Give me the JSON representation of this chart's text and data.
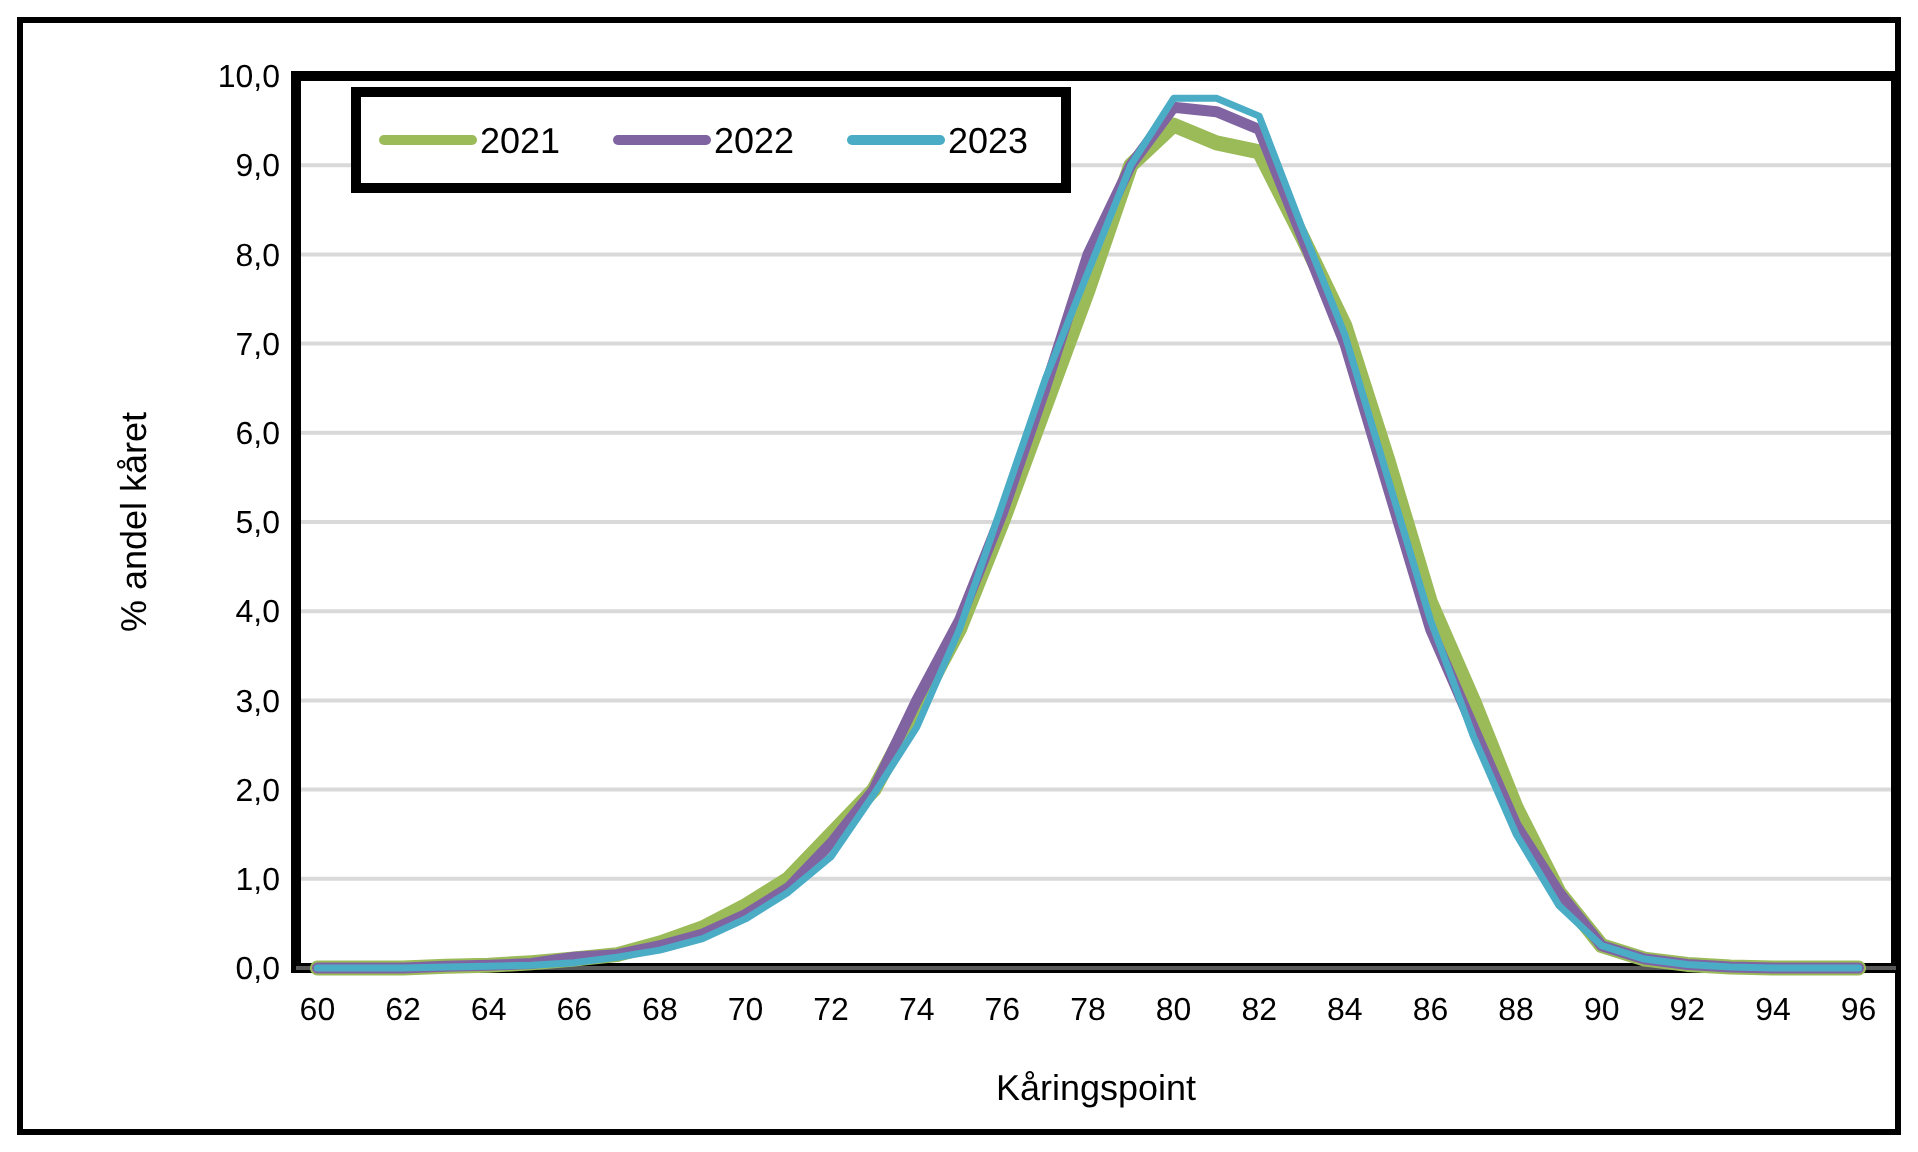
{
  "chart_data": {
    "type": "line",
    "xlabel": "Kåringspoint",
    "ylabel": "% andel kåret",
    "categories": [
      "60",
      null,
      "62",
      null,
      "64",
      null,
      "66",
      null,
      "68",
      null,
      "70",
      null,
      "72",
      null,
      "74",
      null,
      "76",
      null,
      "78",
      null,
      "80",
      null,
      "82",
      null,
      "84",
      null,
      "86",
      null,
      "88",
      null,
      "90",
      null,
      "92",
      null,
      "94",
      null,
      "96"
    ],
    "series": [
      {
        "name": "2021",
        "color": "#9bbb59",
        "values": [
          0,
          0,
          0,
          0.02,
          0.03,
          0.06,
          0.1,
          0.15,
          0.28,
          0.45,
          0.7,
          1.0,
          1.5,
          2.0,
          2.9,
          3.8,
          5.0,
          6.3,
          7.6,
          9.0,
          9.45,
          9.25,
          9.15,
          8.2,
          7.2,
          5.7,
          4.1,
          3.0,
          1.8,
          0.85,
          0.25,
          0.1,
          0.04,
          0.01,
          0,
          0,
          0
        ]
      },
      {
        "name": "2022",
        "color": "#8064a2",
        "values": [
          0,
          0,
          0,
          0.02,
          0.03,
          0.05,
          0.12,
          0.15,
          0.25,
          0.38,
          0.6,
          0.9,
          1.4,
          2.0,
          3.0,
          3.9,
          5.1,
          6.5,
          8.0,
          9.0,
          9.65,
          9.6,
          9.4,
          8.2,
          7.0,
          5.4,
          3.8,
          2.7,
          1.6,
          0.85,
          0.25,
          0.1,
          0.04,
          0.01,
          0,
          0,
          0
        ]
      },
      {
        "name": "2023",
        "color": "#4bacc6",
        "values": [
          0,
          0,
          0,
          0.01,
          0.02,
          0.03,
          0.06,
          0.12,
          0.2,
          0.33,
          0.55,
          0.85,
          1.25,
          1.95,
          2.7,
          3.8,
          5.2,
          6.6,
          7.8,
          9.0,
          9.75,
          9.75,
          9.55,
          8.3,
          7.1,
          5.5,
          3.9,
          2.6,
          1.5,
          0.7,
          0.25,
          0.1,
          0.04,
          0.01,
          0,
          0,
          0
        ]
      }
    ],
    "ylim": [
      0,
      10
    ],
    "yticks": [
      {
        "value": 0,
        "label": "0,0"
      },
      {
        "value": 1,
        "label": "1,0"
      },
      {
        "value": 2,
        "label": "2,0"
      },
      {
        "value": 3,
        "label": "3,0"
      },
      {
        "value": 4,
        "label": "4,0"
      },
      {
        "value": 5,
        "label": "5,0"
      },
      {
        "value": 6,
        "label": "6,0"
      },
      {
        "value": 7,
        "label": "7,0"
      },
      {
        "value": 8,
        "label": "8,0"
      },
      {
        "value": 9,
        "label": "9,0"
      },
      {
        "value": 10,
        "label": "10,0"
      }
    ],
    "grid": "y",
    "legend": "top left",
    "marker": "none",
    "line_style": "solid"
  }
}
